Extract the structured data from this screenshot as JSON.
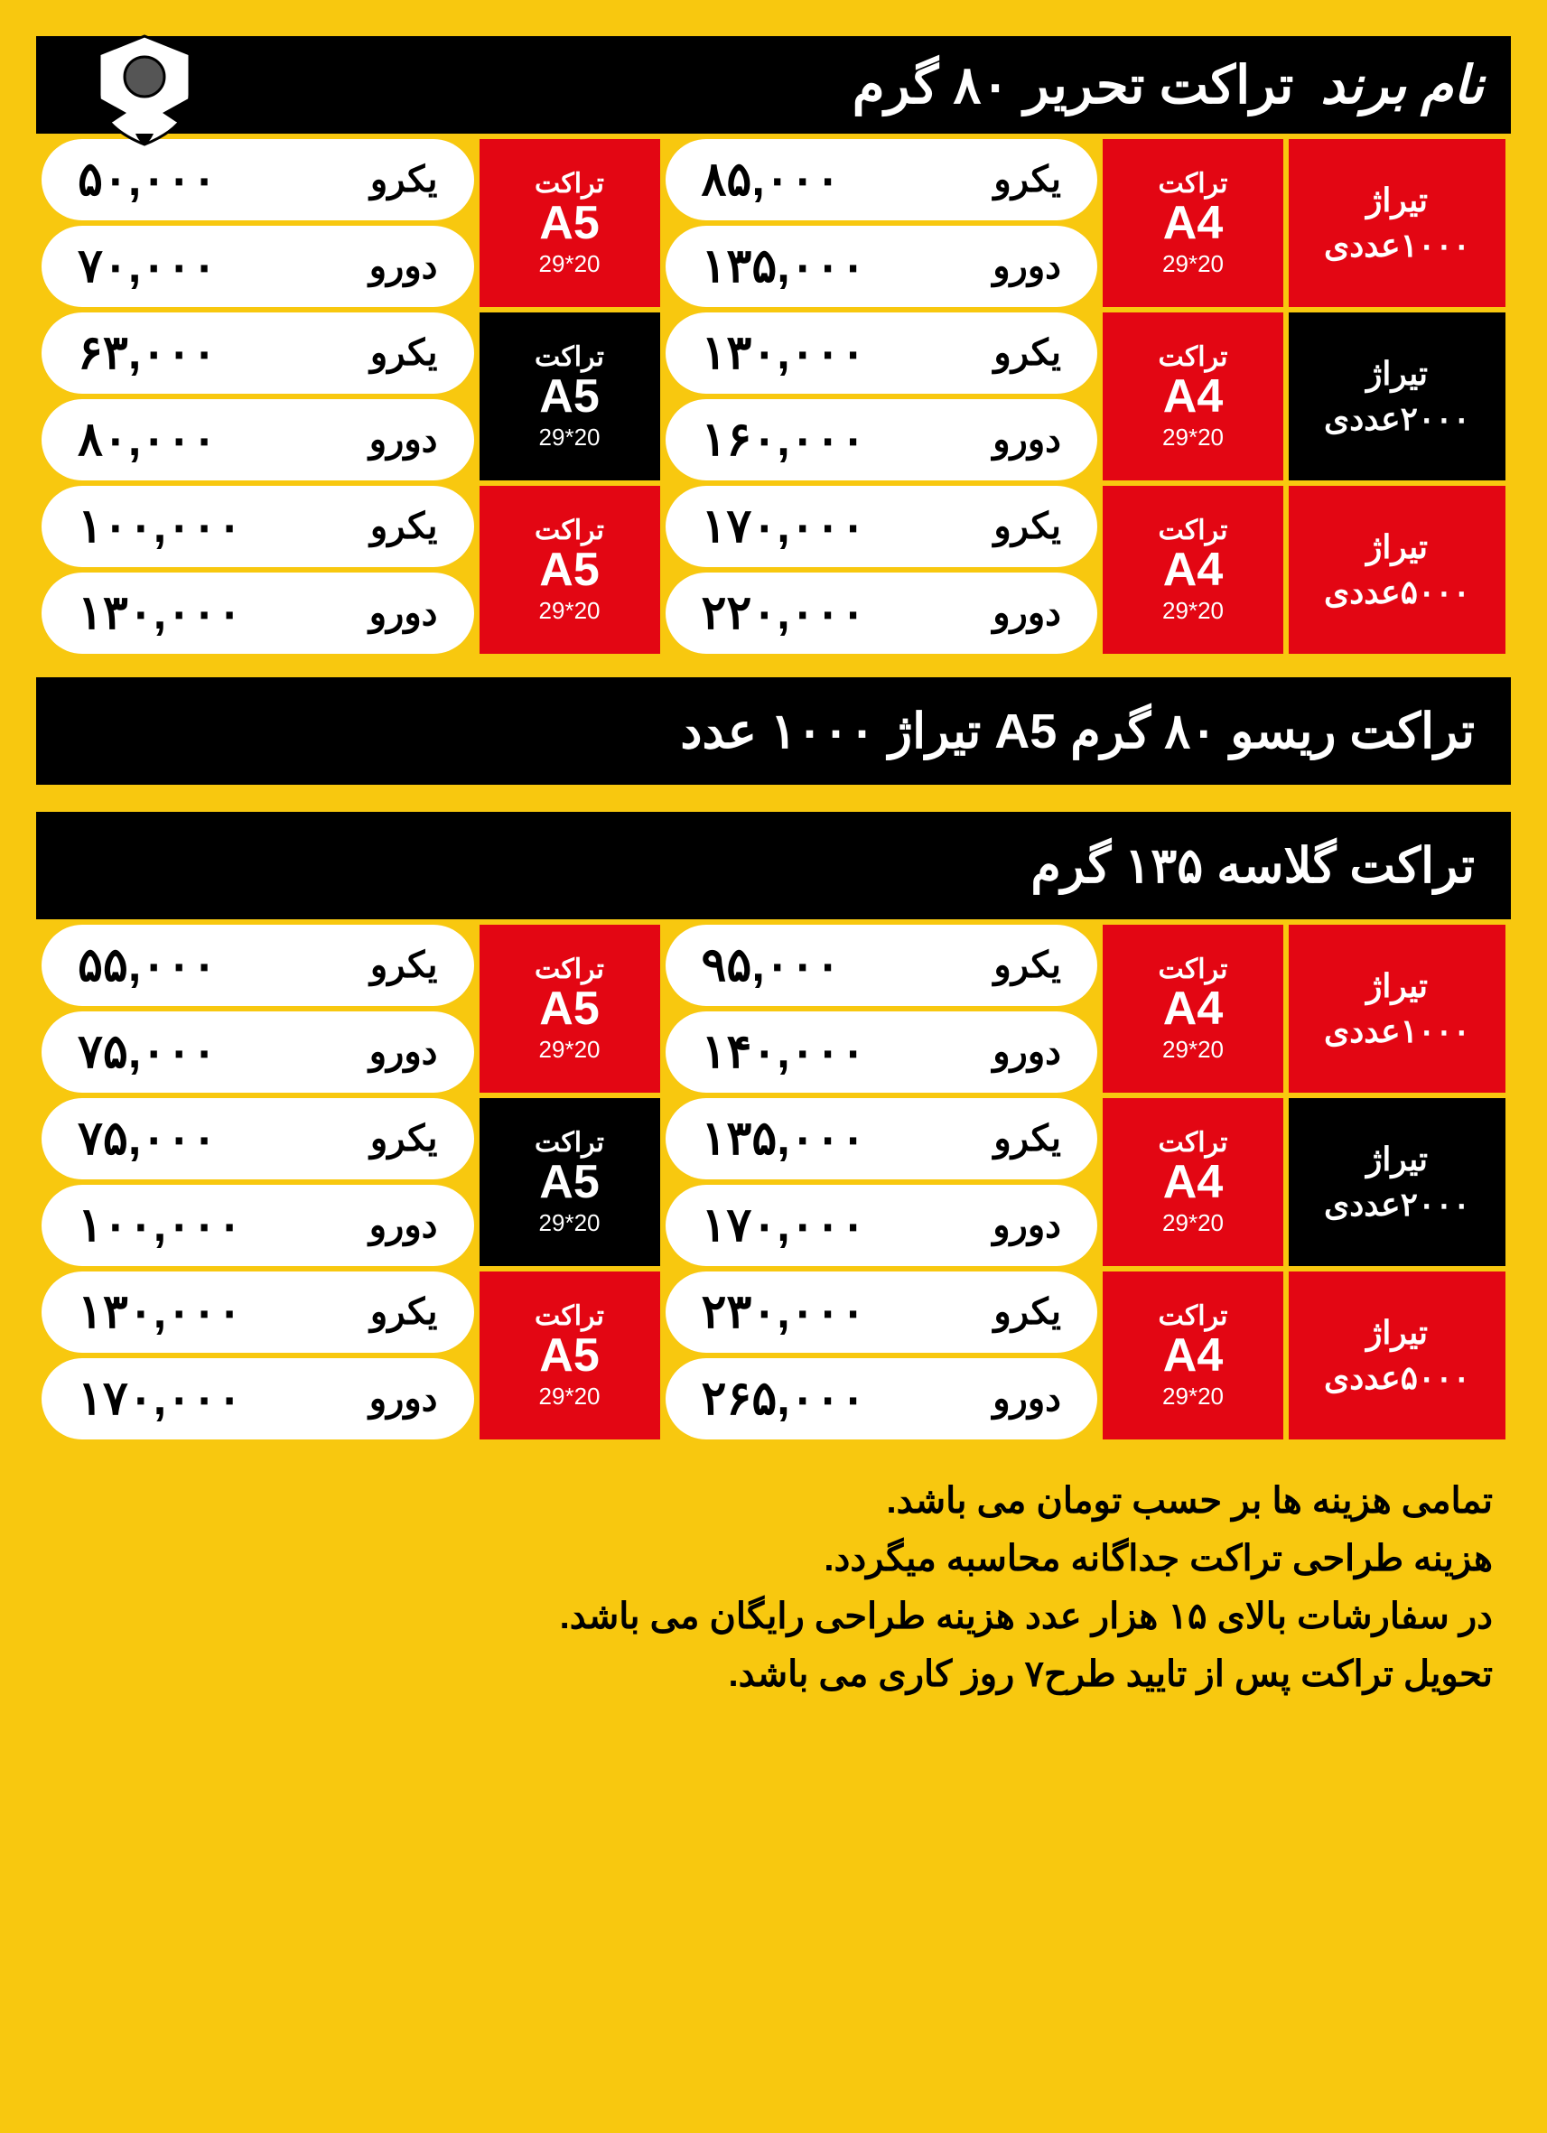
{
  "colors": {
    "bg": "#f8c80f",
    "red": "#e30613",
    "black": "#000000",
    "white": "#ffffff"
  },
  "header1": {
    "brand": "نام برند",
    "title": "تراکت تحریر ۸۰ گرم"
  },
  "labels": {
    "tract": "تراکت",
    "tiraj": "تیراژ",
    "yekro": "یکرو",
    "doro": "دورو",
    "dim": "20*29"
  },
  "table1": {
    "rows": [
      {
        "qty": "۱۰۰۰عددی",
        "qty_bg": "red",
        "a4_bg": "red",
        "a4": "A4",
        "a4_p1": "۸۵,۰۰۰",
        "a4_p2": "۱۳۵,۰۰۰",
        "a5_bg": "red",
        "a5": "A5",
        "a5_p1": "۵۰,۰۰۰",
        "a5_p2": "۷۰,۰۰۰"
      },
      {
        "qty": "۲۰۰۰عددی",
        "qty_bg": "black",
        "a4_bg": "red",
        "a4": "A4",
        "a4_p1": "۱۳۰,۰۰۰",
        "a4_p2": "۱۶۰,۰۰۰",
        "a5_bg": "black",
        "a5": "A5",
        "a5_p1": "۶۳,۰۰۰",
        "a5_p2": "۸۰,۰۰۰"
      },
      {
        "qty": "۵۰۰۰عددی",
        "qty_bg": "red",
        "a4_bg": "red",
        "a4": "A4",
        "a4_p1": "۱۷۰,۰۰۰",
        "a4_p2": "۲۲۰,۰۰۰",
        "a5_bg": "red",
        "a5": "A5",
        "a5_p1": "۱۰۰,۰۰۰",
        "a5_p2": "۱۳۰,۰۰۰"
      }
    ]
  },
  "mid1": "تراکت ریسو ۸۰ گرم A5 تیراژ ۱۰۰۰ عدد",
  "mid2": "تراکت گلاسه ۱۳۵ گرم",
  "table2": {
    "rows": [
      {
        "qty": "۱۰۰۰عددی",
        "qty_bg": "red",
        "a4_bg": "red",
        "a4": "A4",
        "a4_p1": "۹۵,۰۰۰",
        "a4_p2": "۱۴۰,۰۰۰",
        "a5_bg": "red",
        "a5": "A5",
        "a5_p1": "۵۵,۰۰۰",
        "a5_p2": "۷۵,۰۰۰"
      },
      {
        "qty": "۲۰۰۰عددی",
        "qty_bg": "black",
        "a4_bg": "red",
        "a4": "A4",
        "a4_p1": "۱۳۵,۰۰۰",
        "a4_p2": "۱۷۰,۰۰۰",
        "a5_bg": "black",
        "a5": "A5",
        "a5_p1": "۷۵,۰۰۰",
        "a5_p2": "۱۰۰,۰۰۰"
      },
      {
        "qty": "۵۰۰۰عددی",
        "qty_bg": "red",
        "a4_bg": "red",
        "a4": "A4",
        "a4_p1": "۲۳۰,۰۰۰",
        "a4_p2": "۲۶۵,۰۰۰",
        "a5_bg": "red",
        "a5": "A5",
        "a5_p1": "۱۳۰,۰۰۰",
        "a5_p2": "۱۷۰,۰۰۰"
      }
    ]
  },
  "notes": [
    "تمامی هزینه ها بر حسب تومان می باشد.",
    "هزینه طراحی تراکت جداگانه محاسبه میگردد.",
    "در سفارشات بالای ۱۵ هزار عدد هزینه طراحی رایگان می باشد.",
    "تحویل تراکت پس از تایید طرح۷ روز کاری می باشد."
  ]
}
